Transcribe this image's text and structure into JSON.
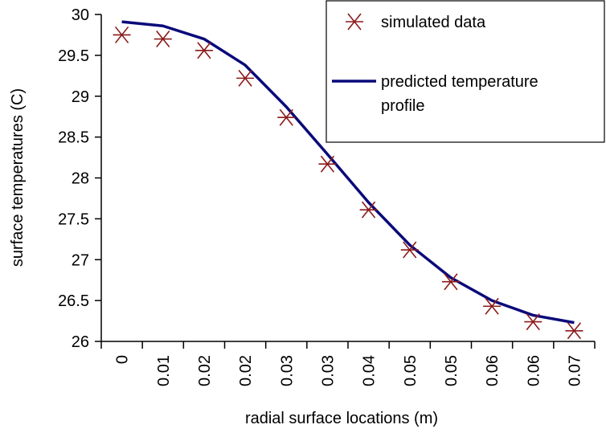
{
  "chart_data": {
    "type": "line",
    "xlabel": "radial surface locations (m)",
    "ylabel": "surface temperatures (C)",
    "ylim": [
      26,
      30
    ],
    "yticks": [
      "26",
      "26.5",
      "27",
      "27.5",
      "28",
      "28.5",
      "29",
      "29.5",
      "30"
    ],
    "categories": [
      "0",
      "0.01",
      "0.02",
      "0.02",
      "0.03",
      "0.03",
      "0.04",
      "0.05",
      "0.05",
      "0.06",
      "0.06",
      "0.07"
    ],
    "grid": false,
    "legend_position": "top-right",
    "series": [
      {
        "name": "simulated data",
        "marker": "asterisk",
        "color": "#8b1a1a",
        "values": [
          29.75,
          29.7,
          29.56,
          29.22,
          28.74,
          28.17,
          27.61,
          27.12,
          26.73,
          26.43,
          26.24,
          26.13
        ]
      },
      {
        "name": "predicted temperature profile",
        "marker": "line",
        "color": "#0a0a7a",
        "values": [
          29.91,
          29.86,
          29.7,
          29.38,
          28.87,
          28.29,
          27.7,
          27.18,
          26.78,
          26.5,
          26.32,
          26.23
        ]
      }
    ],
    "legend": {
      "entries": [
        "simulated data",
        "predicted temperature",
        "profile"
      ]
    }
  }
}
